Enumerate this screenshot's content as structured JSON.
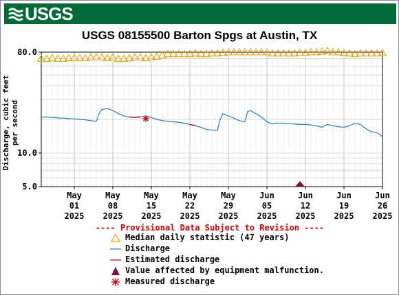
{
  "header": {
    "logo_text": "USGS",
    "logo_icon": "usgs-wave-icon"
  },
  "title": "USGS 08155500 Barton Spgs at Austin, TX",
  "colors": {
    "banner": "#006a36",
    "median": "#e8a200",
    "discharge": "#2a7db0",
    "estimated": "#cc0000",
    "equipment": "#7a1040",
    "measured": "#cc0000",
    "provisional": "#cc0000"
  },
  "chart_data": {
    "type": "line",
    "title": "USGS 08155500 Barton Spgs at Austin, TX",
    "ylabel": "Discharge, cubic feet per second",
    "yscale": "log",
    "ylim": [
      5.0,
      80.0
    ],
    "yticks": [
      "80.0",
      "10.0",
      "5.0"
    ],
    "xlim": [
      "2025-04-25",
      "2025-06-26"
    ],
    "xticks": [
      {
        "date": "2025-05-01",
        "label": [
          "May",
          "01",
          "2025"
        ]
      },
      {
        "date": "2025-05-08",
        "label": [
          "May",
          "08",
          "2025"
        ]
      },
      {
        "date": "2025-05-15",
        "label": [
          "May",
          "15",
          "2025"
        ]
      },
      {
        "date": "2025-05-22",
        "label": [
          "May",
          "22",
          "2025"
        ]
      },
      {
        "date": "2025-05-29",
        "label": [
          "May",
          "29",
          "2025"
        ]
      },
      {
        "date": "2025-06-05",
        "label": [
          "Jun",
          "05",
          "2025"
        ]
      },
      {
        "date": "2025-06-12",
        "label": [
          "Jun",
          "12",
          "2025"
        ]
      },
      {
        "date": "2025-06-19",
        "label": [
          "Jun",
          "19",
          "2025"
        ]
      },
      {
        "date": "2025-06-26",
        "label": [
          "Jun",
          "26",
          "2025"
        ]
      }
    ],
    "series": [
      {
        "name": "Median daily statistic (47 years)",
        "marker": "triangle-open",
        "points": [
          [
            "2025-04-25",
            70
          ],
          [
            "2025-04-26",
            70
          ],
          [
            "2025-04-27",
            71
          ],
          [
            "2025-04-28",
            70
          ],
          [
            "2025-04-29",
            70
          ],
          [
            "2025-04-30",
            71
          ],
          [
            "2025-05-01",
            71
          ],
          [
            "2025-05-02",
            71
          ],
          [
            "2025-05-03",
            71
          ],
          [
            "2025-05-04",
            72
          ],
          [
            "2025-05-05",
            72
          ],
          [
            "2025-05-06",
            72
          ],
          [
            "2025-05-07",
            71
          ],
          [
            "2025-05-08",
            72
          ],
          [
            "2025-05-09",
            70
          ],
          [
            "2025-05-10",
            70
          ],
          [
            "2025-05-11",
            71
          ],
          [
            "2025-05-12",
            72
          ],
          [
            "2025-05-13",
            72
          ],
          [
            "2025-05-14",
            71
          ],
          [
            "2025-05-15",
            72
          ],
          [
            "2025-05-16",
            73
          ],
          [
            "2025-05-17",
            75
          ],
          [
            "2025-05-18",
            77
          ],
          [
            "2025-05-19",
            77
          ],
          [
            "2025-05-20",
            77
          ],
          [
            "2025-05-21",
            77
          ],
          [
            "2025-05-22",
            77
          ],
          [
            "2025-05-23",
            78
          ],
          [
            "2025-05-24",
            77
          ],
          [
            "2025-05-25",
            77
          ],
          [
            "2025-05-26",
            78
          ],
          [
            "2025-05-27",
            78
          ],
          [
            "2025-05-28",
            79
          ],
          [
            "2025-05-29",
            80
          ],
          [
            "2025-05-30",
            80
          ],
          [
            "2025-05-31",
            80
          ],
          [
            "2025-06-01",
            80
          ],
          [
            "2025-06-02",
            80
          ],
          [
            "2025-06-03",
            80
          ],
          [
            "2025-06-04",
            80
          ],
          [
            "2025-06-05",
            80
          ],
          [
            "2025-06-06",
            78
          ],
          [
            "2025-06-07",
            78
          ],
          [
            "2025-06-08",
            78
          ],
          [
            "2025-06-09",
            78
          ],
          [
            "2025-06-10",
            78
          ],
          [
            "2025-06-11",
            79
          ],
          [
            "2025-06-12",
            79
          ],
          [
            "2025-06-13",
            80
          ],
          [
            "2025-06-14",
            80
          ],
          [
            "2025-06-15",
            81
          ],
          [
            "2025-06-16",
            82
          ],
          [
            "2025-06-17",
            80
          ],
          [
            "2025-06-18",
            80
          ],
          [
            "2025-06-19",
            79
          ],
          [
            "2025-06-20",
            78
          ],
          [
            "2025-06-21",
            77
          ],
          [
            "2025-06-22",
            78
          ],
          [
            "2025-06-23",
            78
          ],
          [
            "2025-06-24",
            78
          ],
          [
            "2025-06-25",
            78
          ],
          [
            "2025-06-26",
            79
          ]
        ]
      },
      {
        "name": "Discharge",
        "points": [
          [
            "2025-04-25",
            21.0
          ],
          [
            "2025-04-26",
            21.0
          ],
          [
            "2025-04-27",
            20.8
          ],
          [
            "2025-04-28",
            20.6
          ],
          [
            "2025-04-29",
            20.5
          ],
          [
            "2025-04-30",
            20.3
          ],
          [
            "2025-05-01",
            20.2
          ],
          [
            "2025-05-02",
            20.0
          ],
          [
            "2025-05-03",
            19.8
          ],
          [
            "2025-05-04",
            19.5
          ],
          [
            "2025-05-05",
            19.2
          ],
          [
            "2025-05-05.5",
            22.5
          ],
          [
            "2025-05-06",
            24.5
          ],
          [
            "2025-05-07",
            25.0
          ],
          [
            "2025-05-08",
            24.0
          ],
          [
            "2025-05-09",
            22.5
          ],
          [
            "2025-05-10",
            21.5
          ],
          [
            "2025-05-11",
            21.0
          ],
          [
            "2025-05-12",
            20.8
          ],
          [
            "2025-05-13",
            21.0
          ],
          [
            "2025-05-14",
            21.2
          ],
          [
            "2025-05-15",
            20.8
          ],
          [
            "2025-05-16",
            20.0
          ],
          [
            "2025-05-17",
            19.5
          ],
          [
            "2025-05-18",
            19.2
          ],
          [
            "2025-05-19",
            19.0
          ],
          [
            "2025-05-20",
            18.8
          ],
          [
            "2025-05-21",
            18.5
          ],
          [
            "2025-05-22",
            18.0
          ],
          [
            "2025-05-23",
            17.5
          ],
          [
            "2025-05-24",
            17.0
          ],
          [
            "2025-05-25",
            16.3
          ],
          [
            "2025-05-26",
            16.0
          ],
          [
            "2025-05-27",
            16.0
          ],
          [
            "2025-05-27.5",
            20.0
          ],
          [
            "2025-05-28",
            22.5
          ],
          [
            "2025-05-29",
            21.5
          ],
          [
            "2025-05-30",
            20.5
          ],
          [
            "2025-05-31",
            19.5
          ],
          [
            "2025-06-01",
            19.0
          ],
          [
            "2025-06-01.5",
            23.5
          ],
          [
            "2025-06-02",
            24.0
          ],
          [
            "2025-06-03",
            22.5
          ],
          [
            "2025-06-04",
            21.0
          ],
          [
            "2025-06-05",
            19.0
          ],
          [
            "2025-06-06",
            18.2
          ],
          [
            "2025-06-07",
            18.5
          ],
          [
            "2025-06-08",
            18.5
          ],
          [
            "2025-06-09",
            18.3
          ],
          [
            "2025-06-10",
            18.2
          ],
          [
            "2025-06-11",
            18.0
          ],
          [
            "2025-06-12",
            18.0
          ],
          [
            "2025-06-13",
            17.8
          ],
          [
            "2025-06-14",
            17.5
          ],
          [
            "2025-06-15",
            17.0
          ],
          [
            "2025-06-16",
            18.0
          ],
          [
            "2025-06-17",
            17.5
          ],
          [
            "2025-06-18",
            17.2
          ],
          [
            "2025-06-19",
            17.0
          ],
          [
            "2025-06-20",
            17.5
          ],
          [
            "2025-06-21",
            18.5
          ],
          [
            "2025-06-22",
            18.0
          ],
          [
            "2025-06-23",
            16.5
          ],
          [
            "2025-06-24",
            15.5
          ],
          [
            "2025-06-25",
            15.2
          ],
          [
            "2025-06-26",
            14.0
          ]
        ]
      },
      {
        "name": "Estimated discharge",
        "segments": [
          [
            [
              "2025-05-11",
              21.0
            ],
            [
              "2025-05-12",
              20.9
            ],
            [
              "2025-05-13",
              21.1
            ]
          ],
          [
            [
              "2025-05-22",
              18.0
            ],
            [
              "2025-05-23",
              17.6
            ]
          ]
        ]
      },
      {
        "name": "Value affected by equipment malfunction.",
        "marker": "triangle-filled",
        "points": [
          [
            "2025-06-11",
            5.0
          ]
        ]
      },
      {
        "name": "Measured discharge",
        "marker": "asterisk",
        "points": [
          [
            "2025-05-14",
            20.3
          ]
        ]
      }
    ],
    "legend": {
      "position": "bottom",
      "title": "---- Provisional Data Subject to Revision ----",
      "items": [
        "Median daily statistic (47 years)",
        "Discharge",
        "Estimated discharge",
        "Value affected by equipment malfunction.",
        "Measured discharge"
      ]
    },
    "grid": true
  }
}
